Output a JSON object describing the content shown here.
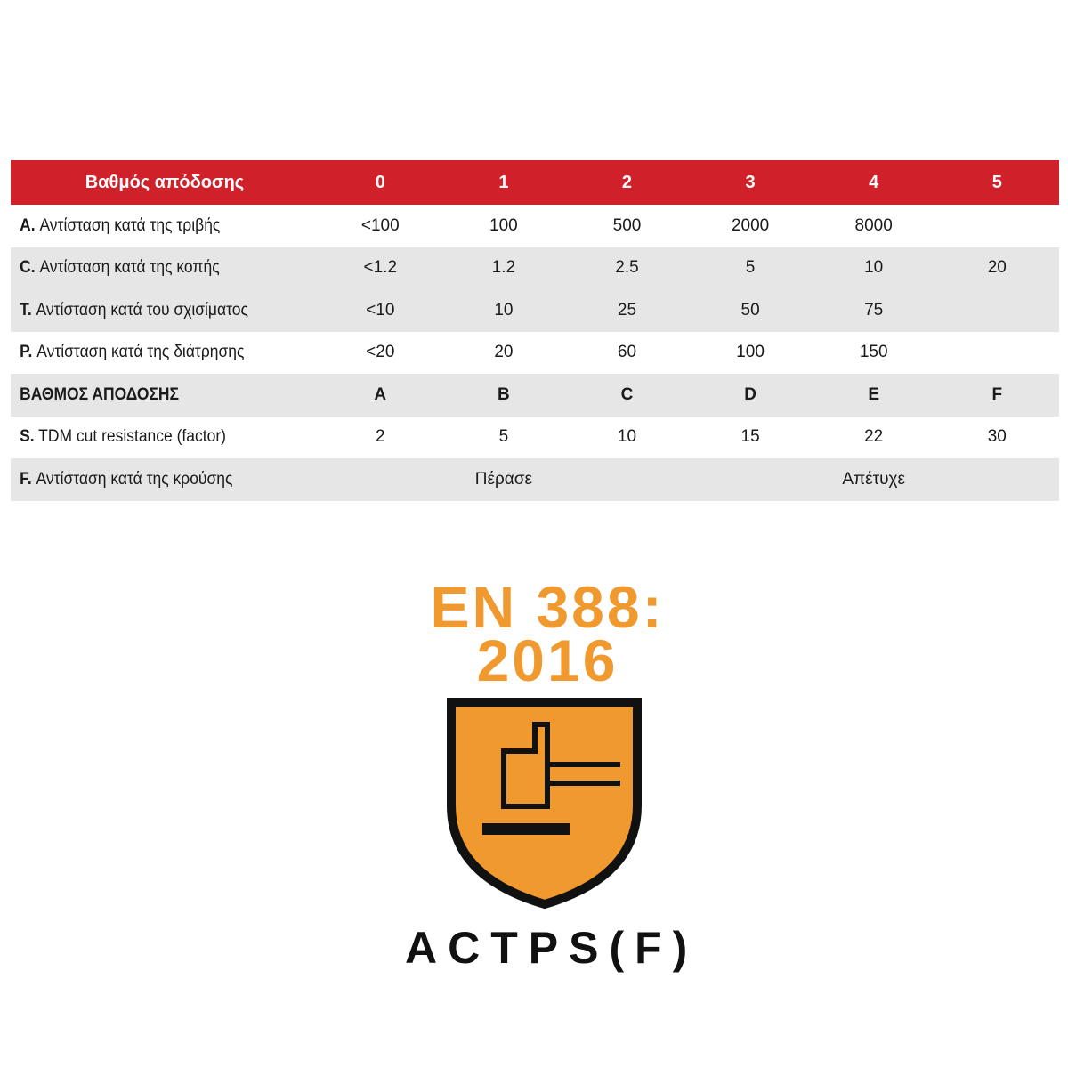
{
  "table": {
    "header": {
      "label": "Βαθμός απόδοσης",
      "levels": [
        "0",
        "1",
        "2",
        "3",
        "4",
        "5"
      ]
    },
    "rows": [
      {
        "prefix": "A.",
        "label": "Αντίσταση κατά της τριβής",
        "values": [
          "<100",
          "100",
          "500",
          "2000",
          "8000",
          ""
        ]
      },
      {
        "prefix": "C.",
        "label": "Αντίσταση κατά της κοπής",
        "values": [
          "<1.2",
          "1.2",
          "2.5",
          "5",
          "10",
          "20"
        ]
      },
      {
        "prefix": "T.",
        "label": " Αντίσταση κατά του σχισίματος",
        "values": [
          "<10",
          "10",
          "25",
          "50",
          "75",
          ""
        ]
      },
      {
        "prefix": "P.",
        "label": " Αντίσταση κατά της διάτρησης",
        "values": [
          "<20",
          "20",
          "60",
          "100",
          "150",
          ""
        ]
      },
      {
        "prefix": "",
        "label": "ΒΑΘΜΟΣ ΑΠΟΔΟΣΗΣ",
        "values": [
          "A",
          "B",
          "C",
          "D",
          "E",
          "F"
        ]
      },
      {
        "prefix": "S.",
        "label": "TDM cut resistance (factor)",
        "values": [
          "2",
          "5",
          "10",
          "15",
          "22",
          "30"
        ]
      }
    ],
    "impact": {
      "prefix": "F.",
      "label": "Αντίσταση κατά της κρούσης",
      "pass": "Πέρασε",
      "fail": "Απέτυχε"
    }
  },
  "logo": {
    "line1": "EN 388:",
    "line2": "2016",
    "codes": "ACTPS(F)",
    "icon": "hammer-impact-shield-icon",
    "colors": {
      "orange": "#f0992e",
      "header_red": "#d0202a",
      "row_gray": "#e6e6e6"
    }
  }
}
